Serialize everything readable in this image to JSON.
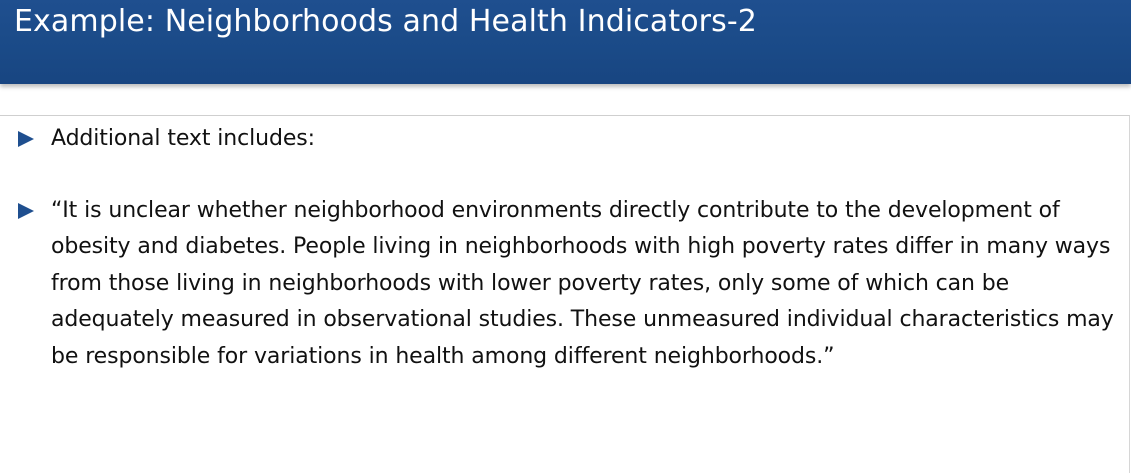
{
  "slide": {
    "title": "Example: Neighborhoods and Health Indicators-2",
    "bullets": [
      {
        "text": "Additional text includes:",
        "icon": "play-triangle-icon"
      },
      {
        "text": "“It is unclear whether neighborhood environments directly contribute to the development of obesity and diabetes. People living in neighborhoods with high poverty rates differ in many ways from those living in neighborhoods with lower poverty rates, only some of which can be adequately measured in observational studies. These unmeasured individual characteristics may be responsible for variations in health among different neighborhoods.”",
        "icon": "play-triangle-icon"
      }
    ]
  },
  "colors": {
    "title_bar": "#1f4f8f",
    "title_text": "#ffffff",
    "bullet": "#1f4f8f",
    "body_text": "#111111"
  }
}
